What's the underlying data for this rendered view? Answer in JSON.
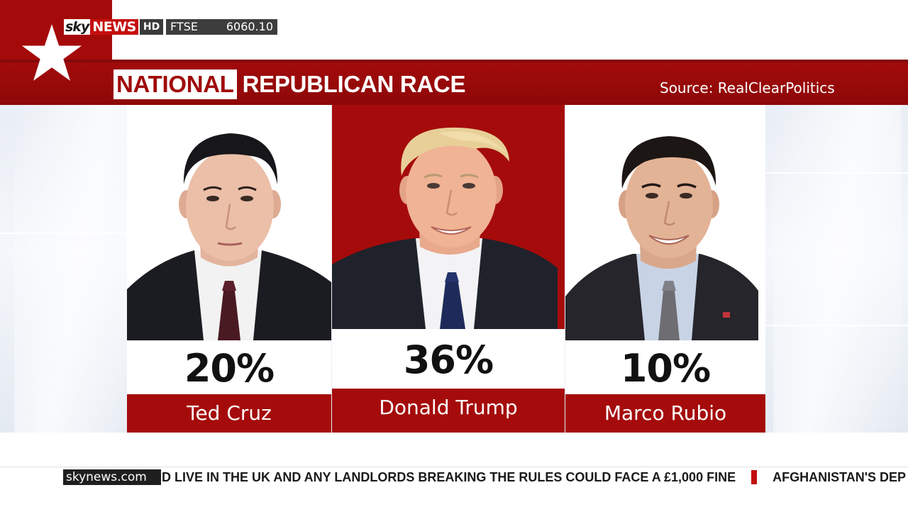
{
  "channel": {
    "brand_sky": "sky",
    "brand_news": "NEWS",
    "brand_hd": "HD",
    "ftse_label": "FTSE",
    "ftse_value": "6060.10"
  },
  "graphic": {
    "title_highlight": "NATIONAL",
    "title_rest": "REPUBLICAN RACE",
    "source": "Source: RealClearPolitics"
  },
  "candidates": [
    {
      "name": "Ted Cruz",
      "percent": "20%"
    },
    {
      "name": "Donald Trump",
      "percent": "36%"
    },
    {
      "name": "Marco Rubio",
      "percent": "10%"
    }
  ],
  "ticker": {
    "site": "skynews.com",
    "headline_1": "D LIVE IN THE UK AND ANY LANDLORDS BREAKING THE RULES COULD FACE A £1,000 FINE",
    "headline_2": "AFGHANISTAN'S DEP"
  },
  "colors": {
    "sky_red": "#a50b0b",
    "ticker_separator": "#c10d0d"
  },
  "icons": [
    "star-icon"
  ]
}
